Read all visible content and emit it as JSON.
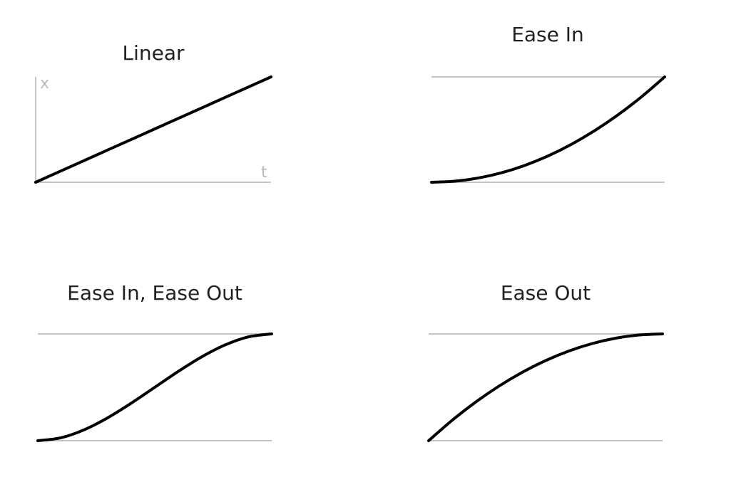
{
  "chart_data": [
    {
      "type": "line",
      "title": "Linear",
      "xlabel": "t",
      "ylabel": "x",
      "xlim": [
        0,
        1
      ],
      "ylim": [
        0,
        1
      ],
      "grid": false,
      "series": [
        {
          "x": [
            0,
            0.1,
            0.2,
            0.3,
            0.4,
            0.5,
            0.6,
            0.7,
            0.8,
            0.9,
            1
          ],
          "y": [
            0,
            0.1,
            0.2,
            0.3,
            0.4,
            0.5,
            0.6,
            0.7,
            0.8,
            0.9,
            1
          ]
        }
      ]
    },
    {
      "type": "line",
      "title": "Ease In",
      "xlabel": "",
      "ylabel": "",
      "xlim": [
        0,
        1
      ],
      "ylim": [
        0,
        1
      ],
      "grid": false,
      "series": [
        {
          "x": [
            0,
            0.1,
            0.2,
            0.3,
            0.4,
            0.5,
            0.6,
            0.7,
            0.8,
            0.9,
            1
          ],
          "y": [
            0,
            0.01,
            0.04,
            0.09,
            0.16,
            0.25,
            0.36,
            0.49,
            0.64,
            0.81,
            1
          ]
        }
      ]
    },
    {
      "type": "line",
      "title": "Ease In, Ease Out",
      "xlabel": "",
      "ylabel": "",
      "xlim": [
        0,
        1
      ],
      "ylim": [
        0,
        1
      ],
      "grid": false,
      "series": [
        {
          "x": [
            0,
            0.1,
            0.2,
            0.3,
            0.4,
            0.5,
            0.6,
            0.7,
            0.8,
            0.9,
            1
          ],
          "y": [
            0,
            0.028,
            0.104,
            0.216,
            0.352,
            0.5,
            0.648,
            0.784,
            0.896,
            0.972,
            1
          ]
        }
      ]
    },
    {
      "type": "line",
      "title": "Ease Out",
      "xlabel": "",
      "ylabel": "",
      "xlim": [
        0,
        1
      ],
      "ylim": [
        0,
        1
      ],
      "grid": false,
      "series": [
        {
          "x": [
            0,
            0.1,
            0.2,
            0.3,
            0.4,
            0.5,
            0.6,
            0.7,
            0.8,
            0.9,
            1
          ],
          "y": [
            0,
            0.19,
            0.36,
            0.51,
            0.64,
            0.75,
            0.84,
            0.91,
            0.96,
            0.99,
            1
          ]
        }
      ]
    }
  ],
  "colors": {
    "curve": "#000000",
    "reference_line": "#c4c4c4",
    "axis_label": "#b8b8b8",
    "title": "#222222"
  }
}
